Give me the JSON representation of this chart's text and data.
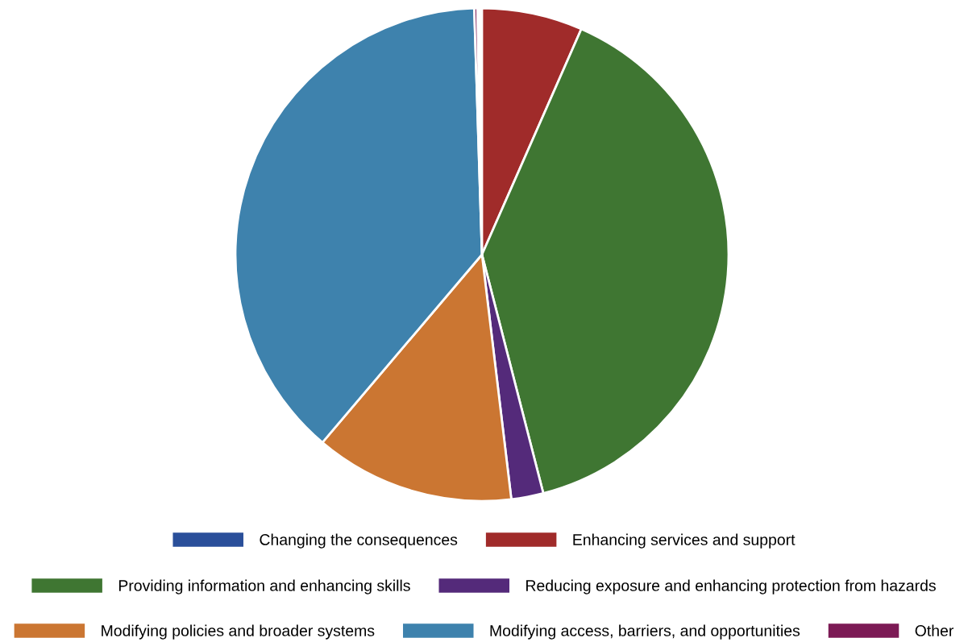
{
  "chart_data": {
    "type": "pie",
    "categories": [
      "Changing the consequences",
      "Enhancing services and support",
      "Providing information and enhancing skills",
      "Reducing exposure and enhancing protection from hazards",
      "Modifying policies and broader systems",
      "Modifying access, barriers, and opportunities",
      "Other"
    ],
    "values": [
      null,
      6.6,
      39.4,
      2.1,
      13.1,
      38.3,
      0.2
    ],
    "colors": [
      "#2a4f9a",
      "#a02b2a",
      "#3f7632",
      "#542a7a",
      "#cb7632",
      "#3e82ad",
      "#7c1a55"
    ],
    "legend": "bottom"
  }
}
